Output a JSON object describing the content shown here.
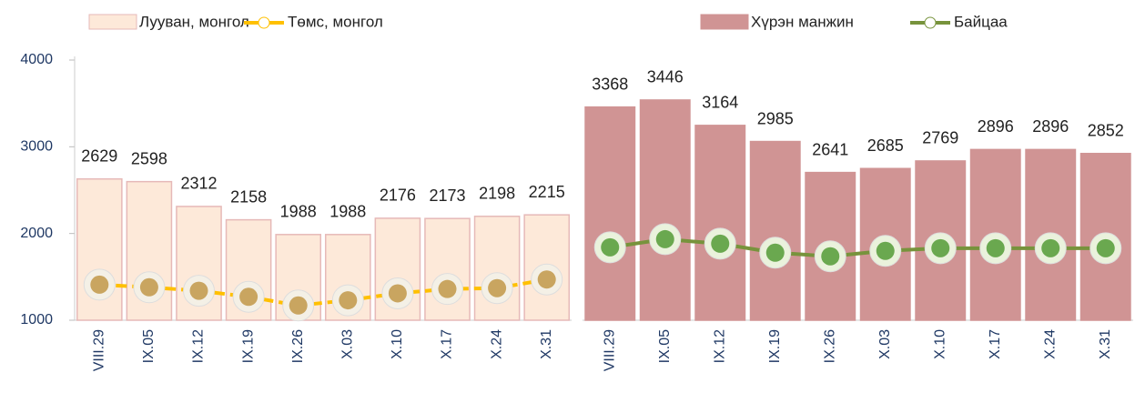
{
  "chart_data": [
    {
      "type": "combo",
      "categories": [
        "VIII.29",
        "IX.05",
        "IX.12",
        "IX.19",
        "IX.26",
        "X.03",
        "X.10",
        "X.17",
        "X.24",
        "X.31"
      ],
      "series": [
        {
          "name": "Лууван, монгол",
          "type": "bar",
          "color": "#fde9d9",
          "stroke": "#e6b9b8",
          "values": [
            2629,
            2598,
            2312,
            2158,
            1988,
            1988,
            2176,
            2173,
            2198,
            2215
          ]
        },
        {
          "name": "Төмс, монгол",
          "type": "line",
          "color": "#ffc000",
          "values": [
            1410,
            1380,
            1340,
            1270,
            1170,
            1230,
            1310,
            1360,
            1370,
            1470
          ]
        }
      ],
      "ylim": [
        1000,
        4000
      ],
      "yticks": [
        1000,
        2000,
        3000,
        4000
      ]
    },
    {
      "type": "combo",
      "categories": [
        "VIII.29",
        "IX.05",
        "IX.12",
        "IX.19",
        "IX.26",
        "X.03",
        "X.10",
        "X.17",
        "X.24",
        "X.31"
      ],
      "series": [
        {
          "name": "Хүрэн манжин",
          "type": "bar",
          "color": "#d09494",
          "stroke": "#d09494",
          "values": [
            3368,
            3446,
            3164,
            2985,
            2641,
            2685,
            2769,
            2896,
            2896,
            2852
          ]
        },
        {
          "name": "Байцаа",
          "type": "line",
          "color": "#77933c",
          "values": [
            1810,
            1900,
            1850,
            1750,
            1710,
            1770,
            1800,
            1800,
            1800,
            1800
          ]
        }
      ],
      "ylim": [
        1000,
        3890
      ]
    }
  ]
}
